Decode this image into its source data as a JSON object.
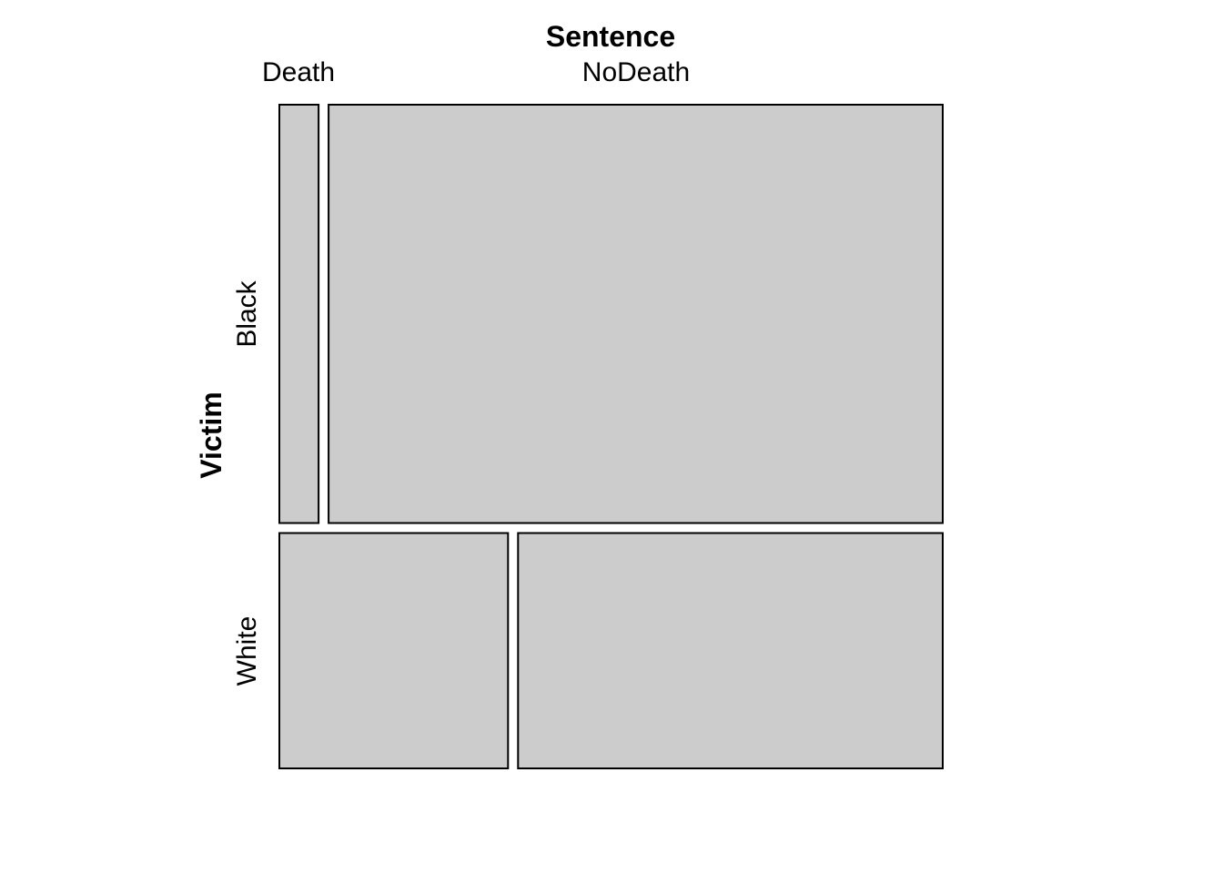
{
  "chart_data": {
    "type": "mosaic",
    "col_variable": "Sentence",
    "row_variable": "Victim",
    "col_levels": [
      "Death",
      "NoDeath"
    ],
    "row_levels": [
      "Black",
      "White"
    ],
    "row_proportions": [
      0.64,
      0.36
    ],
    "cells": [
      {
        "row": "Black",
        "col": "Death",
        "proportion_within_row": 0.06
      },
      {
        "row": "Black",
        "col": "NoDeath",
        "proportion_within_row": 0.94
      },
      {
        "row": "White",
        "col": "Death",
        "proportion_within_row": 0.35
      },
      {
        "row": "White",
        "col": "NoDeath",
        "proportion_within_row": 0.65
      }
    ],
    "tile_fill": "#cccccc",
    "tile_border": "#000000"
  }
}
